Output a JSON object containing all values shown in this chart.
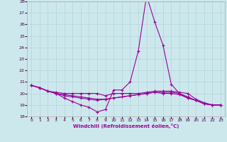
{
  "xlabel": "Windchill (Refroidissement éolien,°C)",
  "xlim": [
    -0.5,
    23.5
  ],
  "ylim": [
    18,
    28
  ],
  "yticks": [
    18,
    19,
    20,
    21,
    22,
    23,
    24,
    25,
    26,
    27,
    28
  ],
  "xticks": [
    0,
    1,
    2,
    3,
    4,
    5,
    6,
    7,
    8,
    9,
    10,
    11,
    12,
    13,
    14,
    15,
    16,
    17,
    18,
    19,
    20,
    21,
    22,
    23
  ],
  "bg_color": "#cde8ed",
  "grid_color": "#b0d4da",
  "line_color": "#990099",
  "line1_x": [
    0,
    1,
    2,
    3,
    4,
    5,
    6,
    7,
    8,
    9,
    10,
    11,
    12,
    13,
    14,
    15,
    16,
    17,
    18,
    19,
    20,
    21,
    22,
    23
  ],
  "line1_y": [
    20.7,
    20.5,
    20.2,
    20.0,
    19.6,
    19.3,
    19.0,
    18.8,
    18.4,
    18.6,
    20.3,
    20.3,
    21.0,
    23.7,
    28.5,
    26.2,
    24.2,
    20.8,
    20.0,
    19.7,
    19.4,
    19.1,
    19.0,
    19.0
  ],
  "line2_x": [
    0,
    1,
    2,
    3,
    4,
    5,
    6,
    7,
    8,
    9,
    10,
    11,
    12,
    13,
    14,
    15,
    16,
    17,
    18,
    19,
    20,
    21,
    22,
    23
  ],
  "line2_y": [
    20.7,
    20.5,
    20.2,
    20.1,
    20.0,
    20.0,
    20.0,
    20.0,
    20.0,
    19.8,
    20.0,
    20.0,
    20.0,
    20.0,
    20.1,
    20.2,
    20.2,
    20.2,
    20.1,
    20.0,
    19.5,
    19.2,
    19.0,
    19.0
  ],
  "line3_x": [
    0,
    1,
    2,
    3,
    4,
    5,
    6,
    7,
    8,
    9,
    10,
    11,
    12,
    13,
    14,
    15,
    16,
    17,
    18,
    19,
    20,
    21,
    22,
    23
  ],
  "line3_y": [
    20.7,
    20.5,
    20.2,
    20.0,
    19.8,
    19.7,
    19.6,
    19.5,
    19.4,
    19.5,
    19.6,
    19.7,
    19.8,
    19.9,
    20.0,
    20.1,
    20.1,
    20.1,
    20.0,
    19.6,
    19.4,
    19.1,
    19.0,
    19.0
  ],
  "line4_x": [
    0,
    1,
    2,
    3,
    4,
    5,
    6,
    7,
    8,
    9,
    10,
    11,
    12,
    13,
    14,
    15,
    16,
    17,
    18,
    19,
    20,
    21,
    22,
    23
  ],
  "line4_y": [
    20.7,
    20.5,
    20.2,
    20.0,
    19.9,
    19.8,
    19.7,
    19.6,
    19.5,
    19.5,
    19.6,
    19.7,
    19.8,
    19.9,
    20.0,
    20.1,
    20.0,
    20.0,
    19.9,
    19.6,
    19.4,
    19.1,
    19.0,
    19.0
  ]
}
